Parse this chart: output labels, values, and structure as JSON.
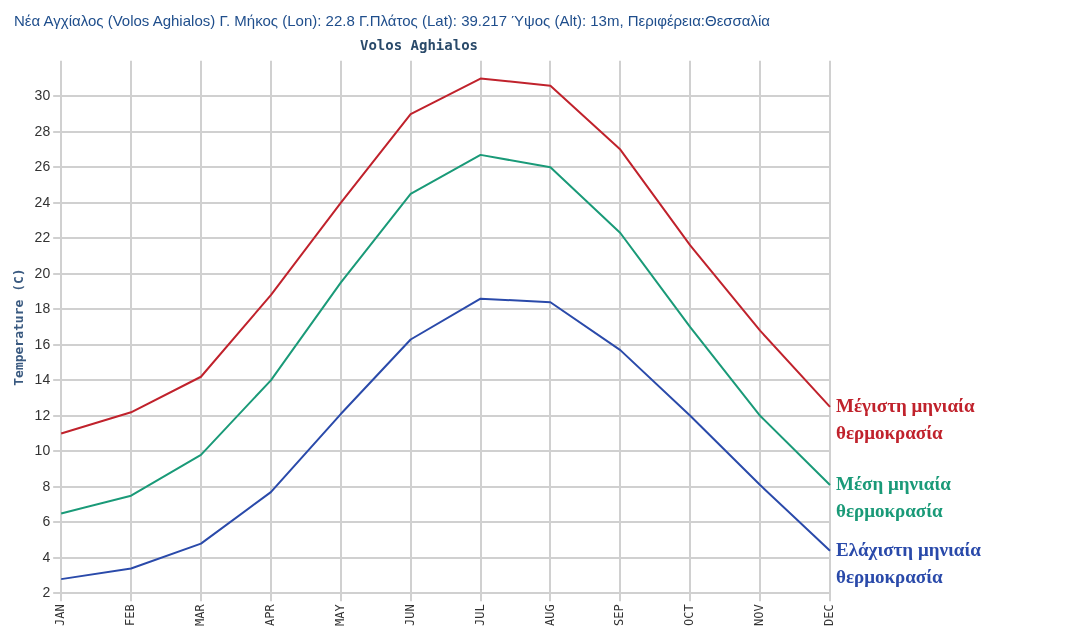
{
  "chart_data": {
    "type": "line",
    "title": "Νέα Αγχίαλος (Volos Aghialos) Γ. Μήκος (Lon): 22.8 Γ.Πλάτος (Lat): 39.217 Ύψος (Alt): 13m, Περιφέρεια:Θεσσαλία",
    "subtitle": "Volos Aghialos",
    "ylabel": "Temperature (C)",
    "categories": [
      "JAN",
      "FEB",
      "MAR",
      "APR",
      "MAY",
      "JUN",
      "JUL",
      "AUG",
      "SEP",
      "OCT",
      "NOV",
      "DEC"
    ],
    "series": [
      {
        "name": "Μέγιστη μηνιαία θερμοκρασία",
        "color": "#c0222c",
        "values": [
          11.0,
          12.2,
          14.2,
          18.8,
          24.0,
          29.0,
          31.0,
          30.6,
          27.0,
          21.6,
          16.8,
          12.5
        ]
      },
      {
        "name": "Μέση μηνιαία θερμοκρασία",
        "color": "#1a9a78",
        "values": [
          6.5,
          7.5,
          9.8,
          14.0,
          19.5,
          24.5,
          26.7,
          26.0,
          22.3,
          17.0,
          12.0,
          8.1
        ]
      },
      {
        "name": "Ελάχιστη μηνιαία θερμοκρασία",
        "color": "#2a4aaa",
        "values": [
          2.8,
          3.4,
          4.8,
          7.7,
          12.1,
          16.3,
          18.6,
          18.4,
          15.7,
          12.0,
          8.1,
          4.4
        ]
      }
    ],
    "ylim": [
      2,
      32
    ],
    "yticks": [
      2,
      4,
      6,
      8,
      10,
      12,
      14,
      16,
      18,
      20,
      22,
      24,
      26,
      28,
      30
    ],
    "grid": true,
    "legend": false,
    "marker": "none",
    "line_style": "solid"
  }
}
